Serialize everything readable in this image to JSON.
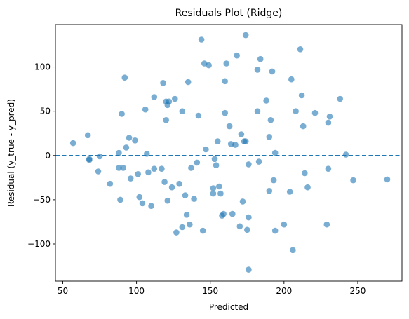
{
  "chart_data": {
    "type": "scatter",
    "title": "Residuals Plot (Ridge)",
    "xlabel": "Predicted",
    "ylabel": "Residual (y_true - y_pred)",
    "xlim": [
      45,
      280
    ],
    "ylim": [
      -142,
      148
    ],
    "xticks": [
      50,
      100,
      150,
      200,
      250
    ],
    "yticks": [
      -100,
      -50,
      0,
      50,
      100
    ],
    "grid": false,
    "reference_line": {
      "y": 0,
      "style": "dashed",
      "color": "#1f77b4"
    },
    "point_color": "#1f77b4",
    "points": [
      [
        57,
        14
      ],
      [
        67,
        23
      ],
      [
        68,
        -5
      ],
      [
        68,
        -4
      ],
      [
        74,
        -18
      ],
      [
        75,
        -1
      ],
      [
        82,
        -32
      ],
      [
        88,
        3
      ],
      [
        88,
        -14
      ],
      [
        89,
        -50
      ],
      [
        90,
        47
      ],
      [
        91,
        -14
      ],
      [
        92,
        88
      ],
      [
        93,
        9
      ],
      [
        95,
        20
      ],
      [
        96,
        -26
      ],
      [
        99,
        17
      ],
      [
        101,
        -21
      ],
      [
        102,
        -47
      ],
      [
        104,
        -54
      ],
      [
        106,
        52
      ],
      [
        107,
        2
      ],
      [
        108,
        -19
      ],
      [
        110,
        -57
      ],
      [
        112,
        -15
      ],
      [
        112,
        66
      ],
      [
        117,
        -15
      ],
      [
        118,
        82
      ],
      [
        119,
        -30
      ],
      [
        120,
        40
      ],
      [
        120,
        61
      ],
      [
        121,
        -51
      ],
      [
        121,
        57
      ],
      [
        122,
        61
      ],
      [
        124,
        -36
      ],
      [
        126,
        64
      ],
      [
        127,
        -87
      ],
      [
        129,
        -32
      ],
      [
        131,
        50
      ],
      [
        131,
        -81
      ],
      [
        133,
        -45
      ],
      [
        134,
        -67
      ],
      [
        135,
        83
      ],
      [
        136,
        -78
      ],
      [
        137,
        -14
      ],
      [
        139,
        -49
      ],
      [
        141,
        -8
      ],
      [
        142,
        45
      ],
      [
        144,
        131
      ],
      [
        145,
        -85
      ],
      [
        146,
        104
      ],
      [
        147,
        7
      ],
      [
        149,
        102
      ],
      [
        152,
        -37
      ],
      [
        152,
        -43
      ],
      [
        153,
        -4
      ],
      [
        154,
        -11
      ],
      [
        155,
        16
      ],
      [
        156,
        -35
      ],
      [
        157,
        -43
      ],
      [
        158,
        -68
      ],
      [
        159,
        -66
      ],
      [
        160,
        84
      ],
      [
        160,
        48
      ],
      [
        161,
        104
      ],
      [
        163,
        33
      ],
      [
        164,
        13
      ],
      [
        165,
        -66
      ],
      [
        167,
        12
      ],
      [
        168,
        113
      ],
      [
        170,
        -80
      ],
      [
        171,
        24
      ],
      [
        172,
        -52
      ],
      [
        173,
        16
      ],
      [
        174,
        136
      ],
      [
        174,
        16
      ],
      [
        175,
        -84
      ],
      [
        176,
        -129
      ],
      [
        176,
        -10
      ],
      [
        176,
        -70
      ],
      [
        182,
        50
      ],
      [
        182,
        97
      ],
      [
        183,
        -7
      ],
      [
        184,
        109
      ],
      [
        188,
        62
      ],
      [
        190,
        21
      ],
      [
        190,
        -40
      ],
      [
        191,
        40
      ],
      [
        192,
        95
      ],
      [
        193,
        -28
      ],
      [
        194,
        -85
      ],
      [
        194,
        3
      ],
      [
        200,
        -78
      ],
      [
        204,
        -41
      ],
      [
        205,
        86
      ],
      [
        206,
        -107
      ],
      [
        208,
        50
      ],
      [
        211,
        120
      ],
      [
        212,
        68
      ],
      [
        213,
        33
      ],
      [
        214,
        -20
      ],
      [
        216,
        -36
      ],
      [
        221,
        48
      ],
      [
        229,
        -78
      ],
      [
        230,
        -15
      ],
      [
        230,
        37
      ],
      [
        231,
        44
      ],
      [
        238,
        64
      ],
      [
        242,
        1
      ],
      [
        247,
        -28
      ],
      [
        270,
        -27
      ]
    ]
  }
}
